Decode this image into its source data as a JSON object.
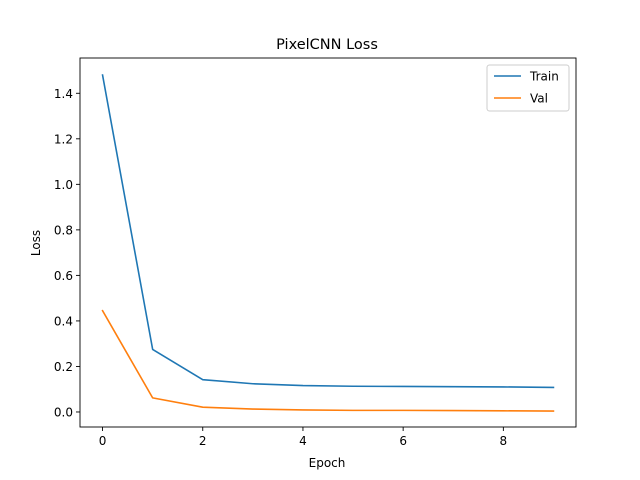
{
  "chart_data": {
    "type": "line",
    "title": "PixelCNN Loss",
    "xlabel": "Epoch",
    "ylabel": "Loss",
    "x": [
      0,
      1,
      2,
      3,
      4,
      5,
      6,
      7,
      8,
      9
    ],
    "series": [
      {
        "name": "Train",
        "color": "#1f77b4",
        "values": [
          1.48,
          0.275,
          0.142,
          0.124,
          0.116,
          0.113,
          0.112,
          0.111,
          0.11,
          0.108
        ]
      },
      {
        "name": "Val",
        "color": "#ff7f0e",
        "values": [
          0.445,
          0.062,
          0.021,
          0.013,
          0.009,
          0.007,
          0.007,
          0.006,
          0.005,
          0.004
        ]
      }
    ],
    "xlim": [
      -0.45,
      9.45
    ],
    "ylim": [
      -0.066,
      1.555
    ],
    "xticks": [
      0,
      2,
      4,
      6,
      8
    ],
    "xtick_labels": [
      "0",
      "2",
      "4",
      "6",
      "8"
    ],
    "yticks": [
      0.0,
      0.2,
      0.4,
      0.6,
      0.8,
      1.0,
      1.2,
      1.4
    ],
    "ytick_labels": [
      "0.0",
      "0.2",
      "0.4",
      "0.6",
      "0.8",
      "1.0",
      "1.2",
      "1.4"
    ],
    "grid": false,
    "legend_position": "top-right"
  }
}
